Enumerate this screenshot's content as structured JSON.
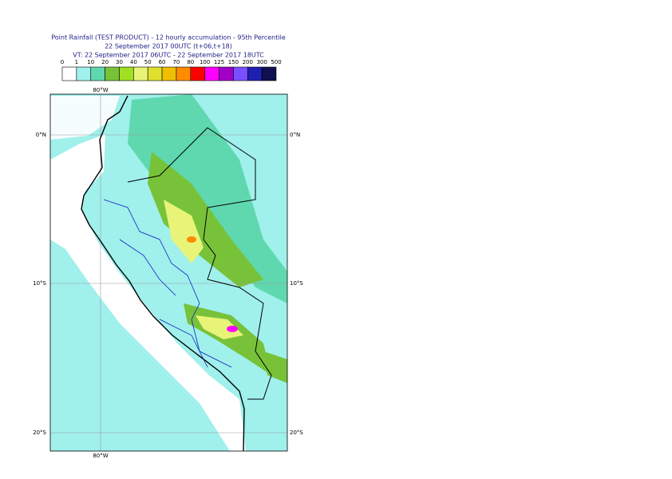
{
  "header": {
    "title": [
      "Point Rainfall (TEST PRODUCT) - 12 hourly accumulation - 95th Percentile",
      "22 September 2017 00UTC (t+06,t+18)",
      "VT: 22 September 2017 06UTC - 22 September 2017 18UTC"
    ]
  },
  "legend": {
    "labels": [
      "0",
      "1",
      "10",
      "20",
      "30",
      "40",
      "50",
      "60",
      "70",
      "80",
      "100",
      "125",
      "150",
      "200",
      "300",
      "500"
    ],
    "colors": [
      "#ffffff",
      "#a0f0ec",
      "#5fd8b0",
      "#78c23a",
      "#a0e020",
      "#e8f478",
      "#e0e030",
      "#f0c000",
      "#ff8c00",
      "#ff0000",
      "#ff00ff",
      "#a000c8",
      "#7850ff",
      "#2020b0",
      "#101050"
    ]
  },
  "map": {
    "lon_labels": [
      "80°W"
    ],
    "lat_labels": [
      "0°N",
      "10°S",
      "20°S"
    ]
  }
}
